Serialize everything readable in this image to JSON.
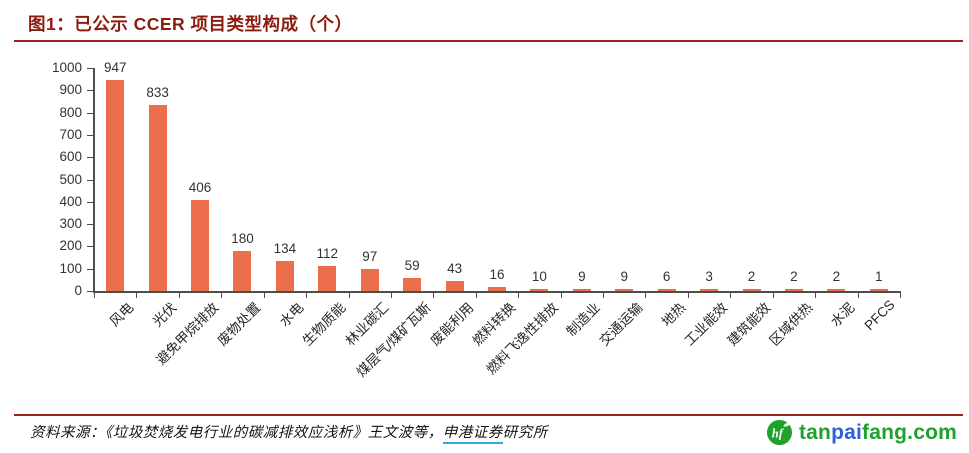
{
  "header": {
    "title": "图1：已公示 CCER 项目类型构成（个）"
  },
  "chart_data": {
    "type": "bar",
    "title": "已公示 CCER 项目类型构成（个）",
    "categories": [
      "风电",
      "光伏",
      "避免甲烷排放",
      "废物处置",
      "水电",
      "生物质能",
      "林业碳汇",
      "煤层气/煤矿瓦斯",
      "废能利用",
      "燃料转换",
      "燃料飞逸性排放",
      "制造业",
      "交通运输",
      "地热",
      "工业能效",
      "建筑能效",
      "区域供热",
      "水泥",
      "PFCS"
    ],
    "values": [
      947,
      833,
      406,
      180,
      134,
      112,
      97,
      59,
      43,
      16,
      10,
      9,
      9,
      6,
      3,
      2,
      2,
      2,
      1
    ],
    "xlabel": "",
    "ylabel": "",
    "ylim": [
      0,
      1000
    ],
    "y_ticks": [
      0,
      100,
      200,
      300,
      400,
      500,
      600,
      700,
      800,
      900,
      1000
    ],
    "grid": false,
    "legend": "none",
    "value_labels_shown": true,
    "bar_color": "#ED6E4D"
  },
  "footer": {
    "source_text_before_link": "资料来源：《垃圾焚烧发电行业的碳减排效应浅析》王文波等，",
    "source_link_text": "申港证券",
    "source_text_after_link": "研究所",
    "logo": {
      "icon": "tanpaifang-leaf-icon",
      "text_green_1": "tan",
      "text_blue": "pai",
      "text_green_2": "fang.com"
    }
  },
  "colors": {
    "title_red": "#8C1B10",
    "rule_red": "#9A2317",
    "bar_orange": "#ED6E4D",
    "axis_gray": "#4D4D4D",
    "label_gray": "#333333",
    "link_underline_cyan": "#2EAADC",
    "logo_green": "#1FA12E",
    "logo_blue": "#2B62D9"
  }
}
